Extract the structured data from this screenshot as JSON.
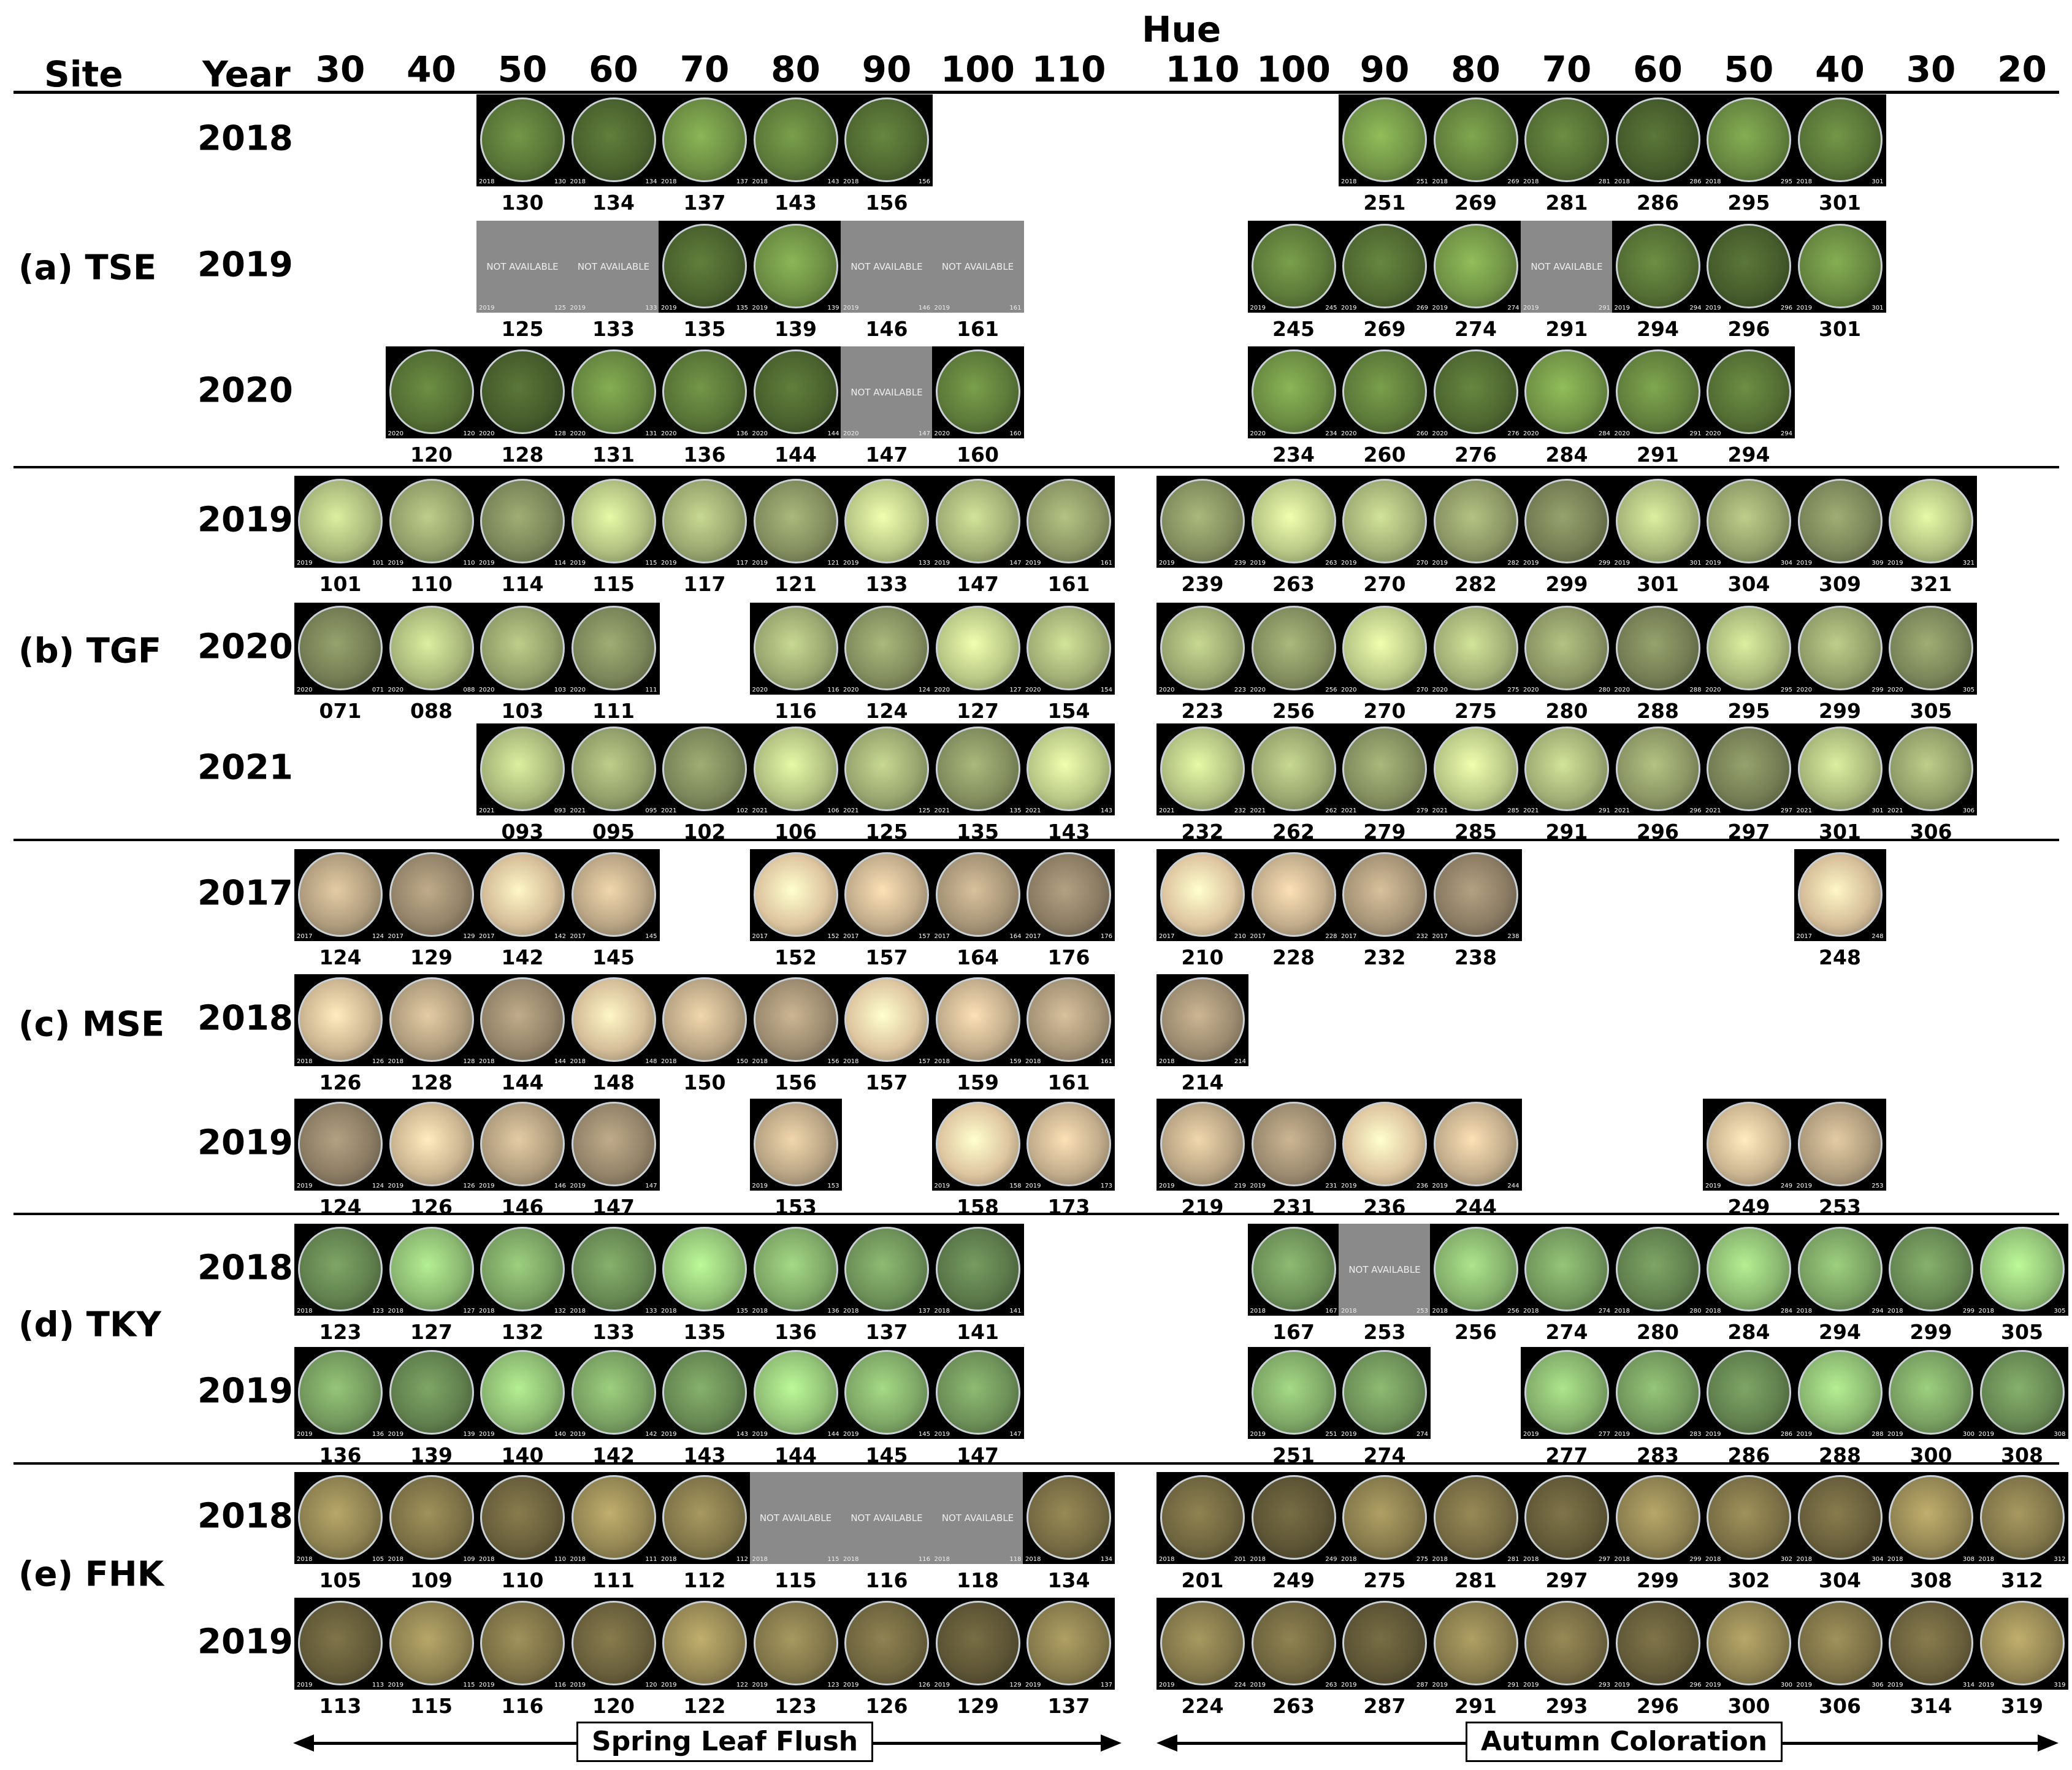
{
  "header": {
    "site": "Site",
    "year": "Year",
    "hue_title": "Hue",
    "hue_spring": [
      "30",
      "40",
      "50",
      "60",
      "70",
      "80",
      "90",
      "100",
      "110"
    ],
    "hue_autumn": [
      "110",
      "100",
      "90",
      "80",
      "70",
      "60",
      "50",
      "40",
      "30",
      "20"
    ]
  },
  "not_available_text": "NOT AVAILABLE",
  "footer": {
    "spring": "Spring Leaf Flush",
    "autumn": "Autumn Coloration"
  },
  "colors": {
    "TSE": "#5d7a3a",
    "TGF": "#9aa770",
    "MSE": "#b9a585",
    "TKY": "#79a062",
    "FHK": "#7b7046",
    "not_available": "#8a8a8a"
  },
  "sites": [
    {
      "label": "(a) TSE",
      "rows": [
        {
          "year": "2018",
          "spring": [
            null,
            null,
            "130",
            "134",
            "137",
            "143",
            "156",
            null,
            null
          ],
          "autumn": [
            null,
            null,
            "251",
            "269",
            "281",
            "286",
            "295",
            "301",
            null,
            null
          ],
          "na": []
        },
        {
          "year": "2019",
          "spring": [
            null,
            null,
            "125",
            "133",
            "135",
            "139",
            "146",
            "161",
            null
          ],
          "autumn": [
            null,
            "245",
            "269",
            "274",
            "291",
            "294",
            "296",
            "301",
            null,
            null
          ],
          "na": [
            "s2",
            "s3",
            "s6",
            "s7",
            "a4"
          ]
        },
        {
          "year": "2020",
          "spring": [
            null,
            "120",
            "128",
            "131",
            "136",
            "144",
            "147",
            "160",
            null
          ],
          "autumn": [
            null,
            "234",
            "260",
            "276",
            "284",
            "291",
            "294",
            null,
            null,
            null
          ],
          "na": [
            "s6"
          ]
        }
      ]
    },
    {
      "label": "(b) TGF",
      "rows": [
        {
          "year": "2019",
          "spring": [
            "101",
            "110",
            "114",
            "115",
            "117",
            "121",
            "133",
            "147",
            "161"
          ],
          "autumn": [
            "239",
            "263",
            "270",
            "282",
            "299",
            "301",
            "304",
            "309",
            "321",
            null
          ],
          "na": []
        },
        {
          "year": "2020",
          "spring": [
            "071",
            "088",
            "103",
            "111",
            null,
            "116",
            "124",
            "127",
            "154"
          ],
          "autumn": [
            "223",
            "256",
            "270",
            "275",
            "280",
            "288",
            "295",
            "299",
            "305",
            null
          ],
          "na": []
        },
        {
          "year": "2021",
          "spring": [
            null,
            null,
            "093",
            "095",
            "102",
            "106",
            "125",
            "135",
            "143"
          ],
          "autumn": [
            "232",
            "262",
            "279",
            "285",
            "291",
            "296",
            "297",
            "301",
            "306",
            null
          ],
          "na": []
        }
      ]
    },
    {
      "label": "(c) MSE",
      "rows": [
        {
          "year": "2017",
          "spring": [
            "124",
            "129",
            "142",
            "145",
            null,
            "152",
            "157",
            "164",
            "176"
          ],
          "autumn": [
            "210",
            "228",
            "232",
            "238",
            null,
            null,
            null,
            "248",
            null,
            null
          ],
          "na": []
        },
        {
          "year": "2018",
          "spring": [
            "126",
            "128",
            "144",
            "148",
            "150",
            "156",
            "157",
            "159",
            "161"
          ],
          "autumn": [
            "214",
            null,
            null,
            null,
            null,
            null,
            null,
            null,
            null,
            null
          ],
          "na": []
        },
        {
          "year": "2019",
          "spring": [
            "124",
            "126",
            "146",
            "147",
            null,
            "153",
            null,
            "158",
            "173"
          ],
          "autumn": [
            "219",
            "231",
            "236",
            "244",
            null,
            null,
            "249",
            "253",
            null,
            null
          ],
          "na": []
        }
      ]
    },
    {
      "label": "(d) TKY",
      "rows": [
        {
          "year": "2018",
          "spring": [
            "123",
            "127",
            "132",
            "133",
            "135",
            "136",
            "137",
            "141",
            null
          ],
          "autumn": [
            null,
            "167",
            "253",
            "256",
            "274",
            "280",
            "284",
            "294",
            "299",
            "305"
          ],
          "na": [
            "a2"
          ]
        },
        {
          "year": "2019",
          "spring": [
            "136",
            "139",
            "140",
            "142",
            "143",
            "144",
            "145",
            "147",
            null
          ],
          "autumn": [
            null,
            "251",
            "274",
            null,
            "277",
            "283",
            "286",
            "288",
            "300",
            "308"
          ],
          "na": []
        }
      ]
    },
    {
      "label": "(e) FHK",
      "rows": [
        {
          "year": "2018",
          "spring": [
            "105",
            "109",
            "110",
            "111",
            "112",
            "115",
            "116",
            "118",
            "134"
          ],
          "autumn": [
            "201",
            "249",
            "275",
            "281",
            "297",
            "299",
            "302",
            "304",
            "308",
            "312"
          ],
          "na": [
            "s5",
            "s6",
            "s7"
          ]
        },
        {
          "year": "2019",
          "spring": [
            "113",
            "115",
            "116",
            "120",
            "122",
            "123",
            "126",
            "129",
            "137"
          ],
          "autumn": [
            "224",
            "263",
            "287",
            "291",
            "293",
            "296",
            "300",
            "306",
            "314",
            "319"
          ],
          "na": []
        }
      ]
    }
  ]
}
